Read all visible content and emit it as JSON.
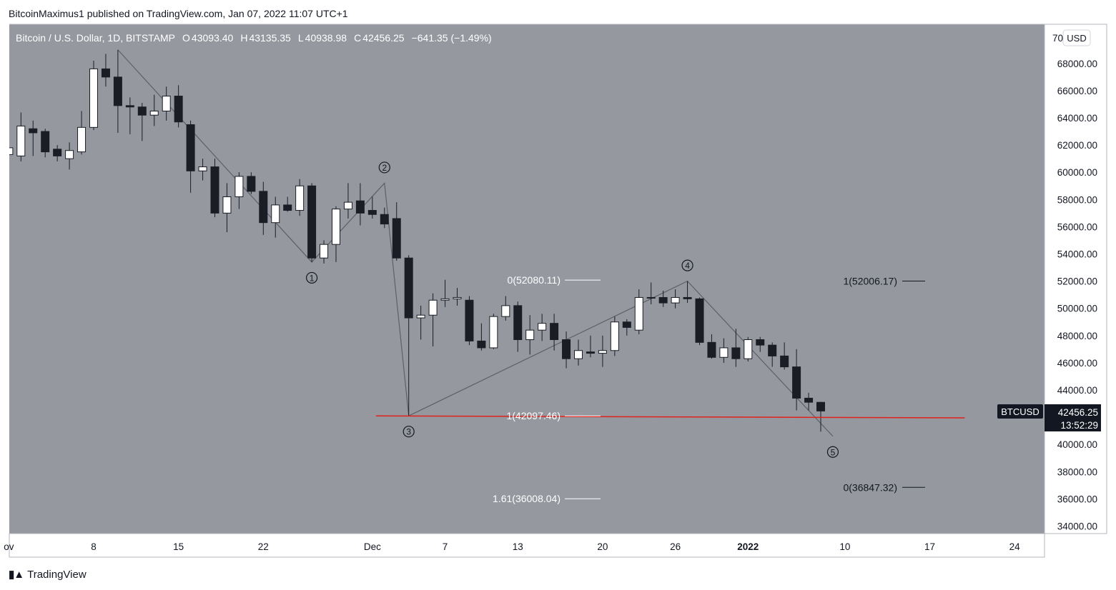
{
  "publisher": "BitcoinMaximus1 published on TradingView.com, Jan 07, 2022 11:07 UTC+1",
  "brand": "TradingView",
  "header": {
    "symbol": "Bitcoin / U.S. Dollar, 1D, BITSTAMP",
    "o_label": "O",
    "o_value": "43093.40",
    "h_label": "H",
    "h_value": "43135.35",
    "l_label": "L",
    "l_value": "40938.98",
    "c_label": "C",
    "c_value": "42456.25",
    "change": "−641.35 (−1.49%)"
  },
  "currency": "USD",
  "colors": {
    "plot_bg": "#95989f",
    "bull": "#ffffff",
    "bear": "#1b1d26",
    "support": "#e0221c",
    "wave": "#5d6069"
  },
  "chart_data": {
    "type": "candlestick",
    "y_ticks": [
      34000,
      36000,
      38000,
      40000,
      42000,
      44000,
      46000,
      48000,
      50000,
      52000,
      54000,
      56000,
      58000,
      60000,
      62000,
      64000,
      66000,
      68000
    ],
    "y_tick_labels": [
      "34000.00",
      "36000.00",
      "38000.00",
      "40000.00",
      "42000.00",
      "44000.00",
      "46000.00",
      "48000.00",
      "50000.00",
      "52000.00",
      "54000.00",
      "56000.00",
      "58000.00",
      "60000.00",
      "62000.00",
      "64000.00",
      "66000.00",
      "68000.00"
    ],
    "y_top_label": "70",
    "x_ticks": [
      {
        "day": -7,
        "label": "ov"
      },
      {
        "day": 0,
        "label": "8"
      },
      {
        "day": 7,
        "label": "15"
      },
      {
        "day": 14,
        "label": "22"
      },
      {
        "day": 23,
        "label": "Dec"
      },
      {
        "day": 29,
        "label": "7"
      },
      {
        "day": 35,
        "label": "13"
      },
      {
        "day": 42,
        "label": "20"
      },
      {
        "day": 48,
        "label": "26"
      },
      {
        "day": 54,
        "label": "2022"
      },
      {
        "day": 62,
        "label": "10"
      },
      {
        "day": 69,
        "label": "17"
      },
      {
        "day": 76,
        "label": "24"
      }
    ],
    "candles": [
      [
        -7,
        61300,
        62400,
        60000,
        61800
      ],
      [
        -6,
        61200,
        64400,
        60800,
        63400
      ],
      [
        -5,
        63200,
        63800,
        61200,
        62900
      ],
      [
        -4,
        63000,
        63200,
        61100,
        61500
      ],
      [
        -3,
        61700,
        62000,
        60800,
        61200
      ],
      [
        -2,
        61000,
        62200,
        60200,
        61600
      ],
      [
        -1,
        61500,
        64500,
        61300,
        63300
      ],
      [
        0,
        63300,
        68200,
        63100,
        67600
      ],
      [
        1,
        67600,
        68700,
        66300,
        67000
      ],
      [
        2,
        67000,
        69000,
        62900,
        64900
      ],
      [
        3,
        64900,
        65500,
        62800,
        64800
      ],
      [
        4,
        64800,
        65100,
        62300,
        64200
      ],
      [
        5,
        64200,
        65700,
        63400,
        64500
      ],
      [
        6,
        64500,
        66300,
        63800,
        65600
      ],
      [
        7,
        65600,
        66400,
        63300,
        63700
      ],
      [
        8,
        63500,
        63800,
        58500,
        60100
      ],
      [
        9,
        60100,
        61000,
        59400,
        60400
      ],
      [
        10,
        60400,
        61000,
        56700,
        57000
      ],
      [
        11,
        57000,
        59200,
        55600,
        58200
      ],
      [
        12,
        58200,
        60000,
        57300,
        59700
      ],
      [
        13,
        59700,
        60000,
        58400,
        58600
      ],
      [
        14,
        58600,
        59300,
        55400,
        56300
      ],
      [
        15,
        56300,
        58200,
        55200,
        57600
      ],
      [
        16,
        57600,
        58200,
        57100,
        57200
      ],
      [
        17,
        57200,
        59500,
        56800,
        59000
      ],
      [
        18,
        59000,
        59200,
        53400,
        53700
      ],
      [
        19,
        53700,
        55000,
        53300,
        54700
      ],
      [
        20,
        54700,
        57500,
        53400,
        57300
      ],
      [
        21,
        57300,
        59200,
        56600,
        57800
      ],
      [
        22,
        57900,
        59200,
        56100,
        57000
      ],
      [
        23,
        57200,
        58200,
        56600,
        56900
      ],
      [
        24,
        56900,
        57400,
        55900,
        56200
      ],
      [
        25,
        56600,
        57800,
        53500,
        53700
      ],
      [
        26,
        53700,
        53900,
        42100,
        49300
      ],
      [
        27,
        49300,
        50200,
        47700,
        49500
      ],
      [
        28,
        49500,
        51100,
        47200,
        50600
      ],
      [
        29,
        50600,
        52100,
        50100,
        50700
      ],
      [
        30,
        50700,
        51500,
        50200,
        50800
      ],
      [
        31,
        50600,
        50900,
        47300,
        47600
      ],
      [
        32,
        47600,
        48900,
        46900,
        47100
      ],
      [
        33,
        47100,
        49600,
        47000,
        49400
      ],
      [
        34,
        49400,
        50900,
        49100,
        50200
      ],
      [
        35,
        50200,
        50500,
        46800,
        47700
      ],
      [
        36,
        47700,
        49500,
        46600,
        48400
      ],
      [
        37,
        48400,
        49600,
        47600,
        48900
      ],
      [
        38,
        48900,
        49600,
        46900,
        47700
      ],
      [
        39,
        47700,
        48300,
        45600,
        46300
      ],
      [
        40,
        46300,
        47700,
        45800,
        46900
      ],
      [
        41,
        46800,
        48000,
        46400,
        46700
      ],
      [
        42,
        46700,
        48000,
        45700,
        46900
      ],
      [
        43,
        46900,
        49400,
        46500,
        49000
      ],
      [
        44,
        49000,
        49200,
        48000,
        48600
      ],
      [
        45,
        48400,
        51400,
        48100,
        50800
      ],
      [
        46,
        50800,
        51900,
        50300,
        50800
      ],
      [
        47,
        50800,
        51300,
        50100,
        50400
      ],
      [
        48,
        50400,
        51400,
        50000,
        50800
      ],
      [
        49,
        50800,
        52000,
        50400,
        50700
      ],
      [
        50,
        50700,
        50800,
        47300,
        47500
      ],
      [
        51,
        47500,
        48100,
        46300,
        46400
      ],
      [
        52,
        46400,
        47800,
        46000,
        47100
      ],
      [
        53,
        47100,
        48500,
        45700,
        46300
      ],
      [
        54,
        46300,
        47900,
        46100,
        47700
      ],
      [
        55,
        47700,
        47900,
        46800,
        47300
      ],
      [
        56,
        47300,
        47500,
        45700,
        46500
      ],
      [
        57,
        46500,
        47500,
        45500,
        45700
      ],
      [
        58,
        45700,
        47000,
        42500,
        43400
      ],
      [
        59,
        43400,
        43800,
        42500,
        43100
      ],
      [
        60,
        43093.4,
        43135.35,
        40938.98,
        42456.25
      ]
    ],
    "wave_path": [
      [
        2,
        69000
      ],
      [
        18,
        53400
      ],
      [
        24,
        59200
      ],
      [
        26,
        42100
      ],
      [
        49,
        52000
      ],
      [
        61,
        40600
      ]
    ],
    "wave_labels": [
      {
        "day": 18,
        "value": 53400,
        "label": "1",
        "pos": "below"
      },
      {
        "day": 24,
        "value": 59200,
        "label": "2",
        "pos": "above"
      },
      {
        "day": 26,
        "value": 42100,
        "label": "3",
        "pos": "below"
      },
      {
        "day": 49,
        "value": 52000,
        "label": "4",
        "pos": "above"
      },
      {
        "day": 61,
        "value": 40600,
        "label": "5",
        "pos": "below"
      }
    ],
    "support_line": {
      "from_day": 24,
      "to_day": 72,
      "from_value": 42100,
      "to_value": 41950
    },
    "fib_levels": [
      {
        "label": "0(52080.11)",
        "value": 52080.11,
        "side": "left"
      },
      {
        "label": "1(42097.46)",
        "value": 42097.46,
        "side": "left"
      },
      {
        "label": "1.61(36008.04)",
        "value": 36008.04,
        "side": "left"
      },
      {
        "label": "1(52006.17)",
        "value": 52006.17,
        "side": "right"
      },
      {
        "label": "0(36847.32)",
        "value": 36847.32,
        "side": "right"
      }
    ],
    "last_price": {
      "symbol": "BTCUSD",
      "value": "42456.25",
      "countdown": "13:52:29"
    }
  }
}
